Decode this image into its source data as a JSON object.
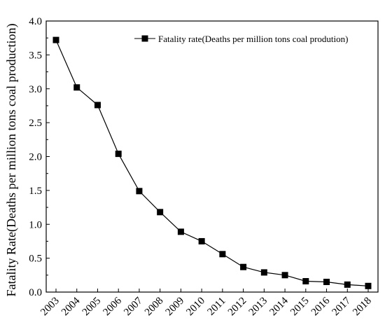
{
  "chart_data": {
    "type": "line",
    "title": "",
    "xlabel": "",
    "ylabel": "Fatality Rate(Deaths per million tons coal production)",
    "x": [
      "2003",
      "2004",
      "2005",
      "2006",
      "2007",
      "2008",
      "2009",
      "2010",
      "2011",
      "2012",
      "2013",
      "2014",
      "2015",
      "2016",
      "2017",
      "2018"
    ],
    "ylim": [
      0,
      4.0
    ],
    "yticks": [
      "0.0",
      "0.5",
      "1.0",
      "1.5",
      "2.0",
      "2.5",
      "3.0",
      "3.5",
      "4.0"
    ],
    "grid": false,
    "legend_position": "top-right",
    "series": [
      {
        "name": "Fatality rate(Deaths per million tons coal prodution)",
        "values": [
          3.72,
          3.02,
          2.76,
          2.04,
          1.49,
          1.18,
          0.89,
          0.75,
          0.56,
          0.37,
          0.29,
          0.25,
          0.16,
          0.15,
          0.11,
          0.09
        ],
        "color": "#000000",
        "marker": "square"
      }
    ]
  }
}
